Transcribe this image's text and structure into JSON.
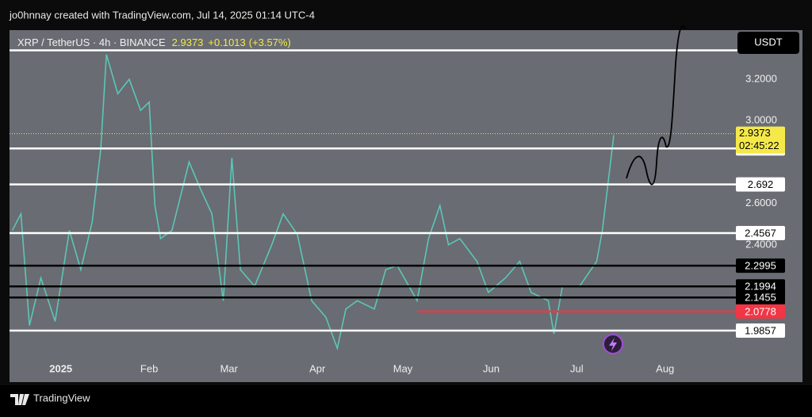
{
  "header": {
    "credit": "jo0hnnay created with TradingView.com, Jul 14, 2025 01:14 UTC-4",
    "symbol": "XRP / TetherUS · 4h · BINANCE",
    "change": 0.1013,
    "change_label": "+0.1013",
    "change_pct": 3.57,
    "change_pct_label": "(+3.57%)"
  },
  "footer": {
    "brand": "TradingView"
  },
  "chart_data": {
    "type": "line",
    "currency": "USDT",
    "last": 2.9373,
    "countdown": "02:45:22",
    "last_color": "#f5e94a",
    "xlim": [
      0,
      254
    ],
    "ylim": [
      1.84,
      3.43
    ],
    "xticks": [
      {
        "value": 18,
        "label": "2025"
      },
      {
        "value": 49,
        "label": "Feb"
      },
      {
        "value": 77,
        "label": "Mar"
      },
      {
        "value": 108,
        "label": "Apr"
      },
      {
        "value": 138,
        "label": "May"
      },
      {
        "value": 169,
        "label": "Jun"
      },
      {
        "value": 199,
        "label": "Jul"
      },
      {
        "value": 230,
        "label": "Aug"
      }
    ],
    "yticks": [
      {
        "value": 3.2,
        "label": "3.2000"
      },
      {
        "value": 3.0,
        "label": "3.0000"
      },
      {
        "value": 2.6,
        "label": "2.6000"
      },
      {
        "value": 2.4,
        "label": "2.4000"
      }
    ],
    "levels": [
      {
        "value": 3.34,
        "color": "#ffffff",
        "labeled": false
      },
      {
        "value": 2.8659,
        "color": "#ffffff",
        "labeled": true
      },
      {
        "value": 2.692,
        "color": "#ffffff",
        "labeled": true
      },
      {
        "value": 2.4567,
        "color": "#ffffff",
        "labeled": true
      },
      {
        "value": 2.2995,
        "color": "#000000",
        "labeled": true
      },
      {
        "value": 2.1994,
        "color": "#000000",
        "labeled": true
      },
      {
        "value": 2.1455,
        "color": "#000000",
        "labeled": true
      },
      {
        "value": 2.0778,
        "color": "#f23645",
        "labeled": true,
        "from": 143
      },
      {
        "value": 1.9857,
        "color": "#ffffff",
        "labeled": true
      }
    ],
    "series": [
      {
        "name": "XRP / TetherUS",
        "color": "#5cc6b8",
        "x": [
          1,
          4,
          7,
          11,
          16,
          21,
          25,
          29,
          32,
          34,
          38,
          42,
          46,
          49,
          51,
          53,
          57,
          63,
          67,
          71,
          75,
          78,
          81,
          86,
          92,
          96,
          101,
          106,
          111,
          115,
          118,
          122,
          128,
          132,
          136,
          143,
          147,
          151,
          154,
          158,
          164,
          168,
          174,
          179,
          183,
          189,
          191,
          194,
          200,
          206,
          208,
          210,
          212
        ],
        "values": [
          2.47,
          2.55,
          2.01,
          2.24,
          2.03,
          2.47,
          2.28,
          2.51,
          2.86,
          3.32,
          3.13,
          3.2,
          3.05,
          3.09,
          2.59,
          2.43,
          2.47,
          2.8,
          2.67,
          2.55,
          2.13,
          2.82,
          2.28,
          2.2,
          2.4,
          2.55,
          2.45,
          2.13,
          2.05,
          1.9,
          2.09,
          2.13,
          2.09,
          2.28,
          2.3,
          2.13,
          2.43,
          2.59,
          2.4,
          2.43,
          2.32,
          2.17,
          2.24,
          2.32,
          2.17,
          2.13,
          1.97,
          2.2,
          2.2,
          2.32,
          2.47,
          2.7,
          2.93
        ]
      }
    ]
  }
}
